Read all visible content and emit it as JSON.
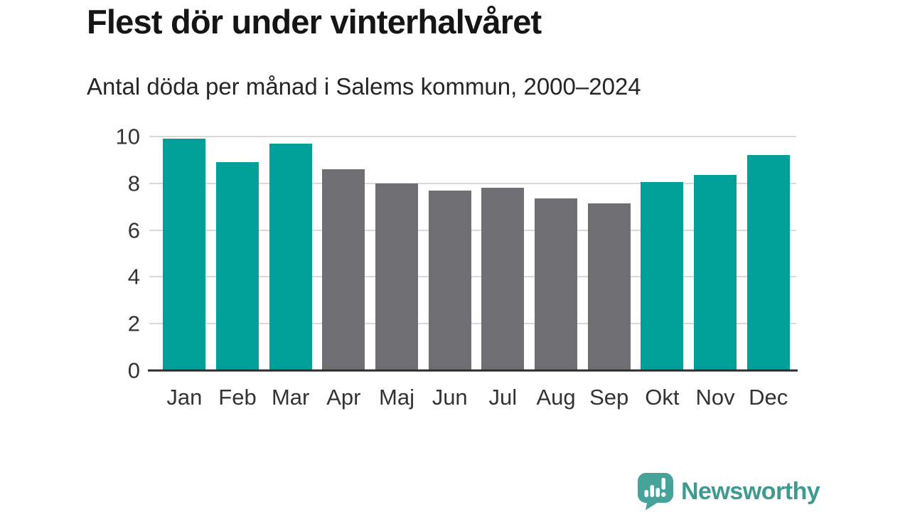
{
  "header": {
    "title": "Flest dör under vinterhalvåret",
    "subtitle": "Antal döda per månad i Salems kommun, 2000–2024"
  },
  "chart_data": {
    "type": "bar",
    "title": "Flest dör under vinterhalvåret",
    "subtitle": "Antal döda per månad i Salems kommun, 2000–2024",
    "categories": [
      "Jan",
      "Feb",
      "Mar",
      "Apr",
      "Maj",
      "Jun",
      "Jul",
      "Aug",
      "Sep",
      "Okt",
      "Nov",
      "Dec"
    ],
    "values": [
      9.9,
      8.9,
      9.7,
      8.6,
      8.0,
      7.7,
      7.8,
      7.35,
      7.15,
      8.05,
      8.35,
      9.2
    ],
    "bar_color_keys": [
      "highlight",
      "highlight",
      "highlight",
      "muted",
      "muted",
      "muted",
      "muted",
      "muted",
      "muted",
      "highlight",
      "highlight",
      "highlight"
    ],
    "colors": {
      "highlight": "#00a099",
      "muted": "#6e6e73"
    },
    "xlabel": "",
    "ylabel": "",
    "yticks": [
      0,
      2,
      4,
      6,
      8,
      10
    ],
    "ylim": [
      0,
      10
    ],
    "grid": true,
    "legend": "none"
  },
  "branding": {
    "logo_text": "Newsworthy",
    "logo_text_color": "#3f9a91",
    "logo_icon": "bar-chart-speech-bubble-icon",
    "logo_icon_color": "#46a39a"
  }
}
